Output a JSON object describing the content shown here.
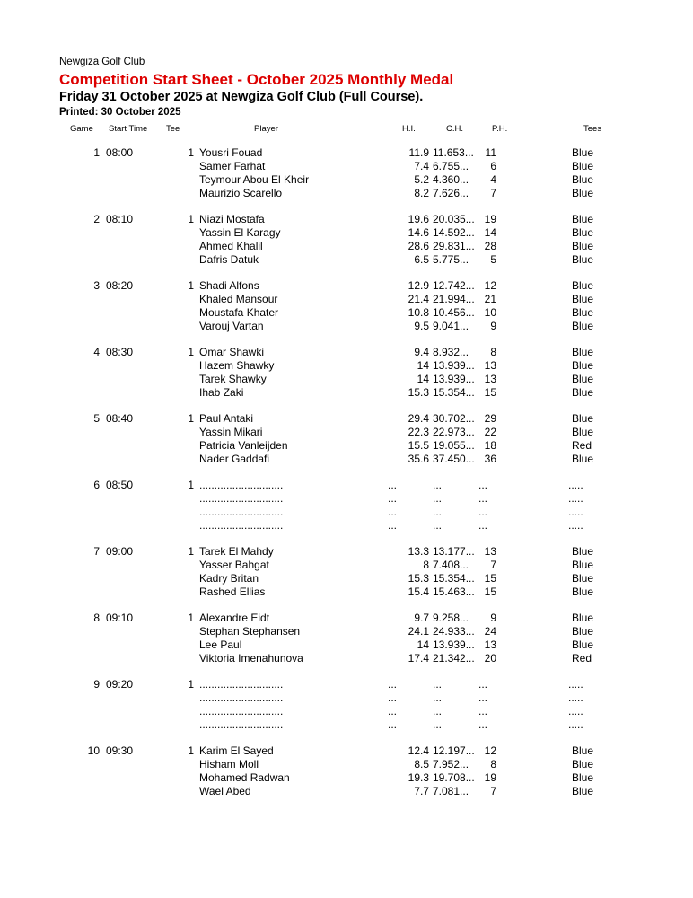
{
  "header": {
    "club_name": "Newgiza Golf Club",
    "title": "Competition Start Sheet - October 2025 Monthly Medal",
    "date_line": "Friday 31 October 2025 at Newgiza Golf Club (Full Course).",
    "printed_line": "Printed: 30 October 2025",
    "title_color": "#dd0000"
  },
  "table": {
    "columns": {
      "game": "Game",
      "start_time": "Start Time",
      "tee": "Tee",
      "player": "Player",
      "hi": "H.I.",
      "ch": "C.H.",
      "ph": "P.H.",
      "tees": "Tees"
    },
    "groups": [
      {
        "game": "1",
        "start_time": "08:00",
        "tee": "1",
        "placeholder": false,
        "players": [
          {
            "name": "Yousri Fouad",
            "hi": "11.9",
            "ch": "11.653...",
            "ph": "11",
            "tees": "Blue"
          },
          {
            "name": "Samer Farhat",
            "hi": "7.4",
            "ch": "6.755...",
            "ph": "6",
            "tees": "Blue"
          },
          {
            "name": "Teymour Abou El Kheir",
            "hi": "5.2",
            "ch": "4.360...",
            "ph": "4",
            "tees": "Blue"
          },
          {
            "name": "Maurizio Scarello",
            "hi": "8.2",
            "ch": "7.626...",
            "ph": "7",
            "tees": "Blue"
          }
        ]
      },
      {
        "game": "2",
        "start_time": "08:10",
        "tee": "1",
        "placeholder": false,
        "players": [
          {
            "name": "Niazi Mostafa",
            "hi": "19.6",
            "ch": "20.035...",
            "ph": "19",
            "tees": "Blue"
          },
          {
            "name": "Yassin El Karagy",
            "hi": "14.6",
            "ch": "14.592...",
            "ph": "14",
            "tees": "Blue"
          },
          {
            "name": "Ahmed Khalil",
            "hi": "28.6",
            "ch": "29.831...",
            "ph": "28",
            "tees": "Blue"
          },
          {
            "name": "Dafris Datuk",
            "hi": "6.5",
            "ch": "5.775...",
            "ph": "5",
            "tees": "Blue"
          }
        ]
      },
      {
        "game": "3",
        "start_time": "08:20",
        "tee": "1",
        "placeholder": false,
        "players": [
          {
            "name": "Shadi Alfons",
            "hi": "12.9",
            "ch": "12.742...",
            "ph": "12",
            "tees": "Blue"
          },
          {
            "name": "Khaled Mansour",
            "hi": "21.4",
            "ch": "21.994...",
            "ph": "21",
            "tees": "Blue"
          },
          {
            "name": "Moustafa Khater",
            "hi": "10.8",
            "ch": "10.456...",
            "ph": "10",
            "tees": "Blue"
          },
          {
            "name": "Varouj Vartan",
            "hi": "9.5",
            "ch": "9.041...",
            "ph": "9",
            "tees": "Blue"
          }
        ]
      },
      {
        "game": "4",
        "start_time": "08:30",
        "tee": "1",
        "placeholder": false,
        "players": [
          {
            "name": "Omar Shawki",
            "hi": "9.4",
            "ch": "8.932...",
            "ph": "8",
            "tees": "Blue"
          },
          {
            "name": "Hazem Shawky",
            "hi": "14",
            "ch": "13.939...",
            "ph": "13",
            "tees": "Blue"
          },
          {
            "name": "Tarek Shawky",
            "hi": "14",
            "ch": "13.939...",
            "ph": "13",
            "tees": "Blue"
          },
          {
            "name": "Ihab Zaki",
            "hi": "15.3",
            "ch": "15.354...",
            "ph": "15",
            "tees": "Blue"
          }
        ]
      },
      {
        "game": "5",
        "start_time": "08:40",
        "tee": "1",
        "placeholder": false,
        "players": [
          {
            "name": "Paul Antaki",
            "hi": "29.4",
            "ch": "30.702...",
            "ph": "29",
            "tees": "Blue"
          },
          {
            "name": "Yassin Mikari",
            "hi": "22.3",
            "ch": "22.973...",
            "ph": "22",
            "tees": "Blue"
          },
          {
            "name": "Patricia Vanleijden",
            "hi": "15.5",
            "ch": "19.055...",
            "ph": "18",
            "tees": "Red"
          },
          {
            "name": "Nader Gaddafi",
            "hi": "35.6",
            "ch": "37.450...",
            "ph": "36",
            "tees": "Blue"
          }
        ]
      },
      {
        "game": "6",
        "start_time": "08:50",
        "tee": "1",
        "placeholder": true,
        "players": [
          {
            "name": "............................",
            "hi": "...",
            "ch": "...",
            "ph": "...",
            "tees": "....."
          },
          {
            "name": "............................",
            "hi": "...",
            "ch": "...",
            "ph": "...",
            "tees": "....."
          },
          {
            "name": "............................",
            "hi": "...",
            "ch": "...",
            "ph": "...",
            "tees": "....."
          },
          {
            "name": "............................",
            "hi": "...",
            "ch": "...",
            "ph": "...",
            "tees": "....."
          }
        ]
      },
      {
        "game": "7",
        "start_time": "09:00",
        "tee": "1",
        "placeholder": false,
        "players": [
          {
            "name": "Tarek El Mahdy",
            "hi": "13.3",
            "ch": "13.177...",
            "ph": "13",
            "tees": "Blue"
          },
          {
            "name": "Yasser Bahgat",
            "hi": "8",
            "ch": "7.408...",
            "ph": "7",
            "tees": "Blue"
          },
          {
            "name": "Kadry Britan",
            "hi": "15.3",
            "ch": "15.354...",
            "ph": "15",
            "tees": "Blue"
          },
          {
            "name": "Rashed Ellias",
            "hi": "15.4",
            "ch": "15.463...",
            "ph": "15",
            "tees": "Blue"
          }
        ]
      },
      {
        "game": "8",
        "start_time": "09:10",
        "tee": "1",
        "placeholder": false,
        "players": [
          {
            "name": "Alexandre Eidt",
            "hi": "9.7",
            "ch": "9.258...",
            "ph": "9",
            "tees": "Blue"
          },
          {
            "name": "Stephan Stephansen",
            "hi": "24.1",
            "ch": "24.933...",
            "ph": "24",
            "tees": "Blue"
          },
          {
            "name": "Lee Paul",
            "hi": "14",
            "ch": "13.939...",
            "ph": "13",
            "tees": "Blue"
          },
          {
            "name": "Viktoria Imenahunova",
            "hi": "17.4",
            "ch": "21.342...",
            "ph": "20",
            "tees": "Red"
          }
        ]
      },
      {
        "game": "9",
        "start_time": "09:20",
        "tee": "1",
        "placeholder": true,
        "players": [
          {
            "name": "............................",
            "hi": "...",
            "ch": "...",
            "ph": "...",
            "tees": "....."
          },
          {
            "name": "............................",
            "hi": "...",
            "ch": "...",
            "ph": "...",
            "tees": "....."
          },
          {
            "name": "............................",
            "hi": "...",
            "ch": "...",
            "ph": "...",
            "tees": "....."
          },
          {
            "name": "............................",
            "hi": "...",
            "ch": "...",
            "ph": "...",
            "tees": "....."
          }
        ]
      },
      {
        "game": "10",
        "start_time": "09:30",
        "tee": "1",
        "placeholder": false,
        "players": [
          {
            "name": "Karim El Sayed",
            "hi": "12.4",
            "ch": "12.197...",
            "ph": "12",
            "tees": "Blue"
          },
          {
            "name": "Hisham Moll",
            "hi": "8.5",
            "ch": "7.952...",
            "ph": "8",
            "tees": "Blue"
          },
          {
            "name": "Mohamed Radwan",
            "hi": "19.3",
            "ch": "19.708...",
            "ph": "19",
            "tees": "Blue"
          },
          {
            "name": "Wael Abed",
            "hi": "7.7",
            "ch": "7.081...",
            "ph": "7",
            "tees": "Blue"
          }
        ]
      }
    ]
  }
}
